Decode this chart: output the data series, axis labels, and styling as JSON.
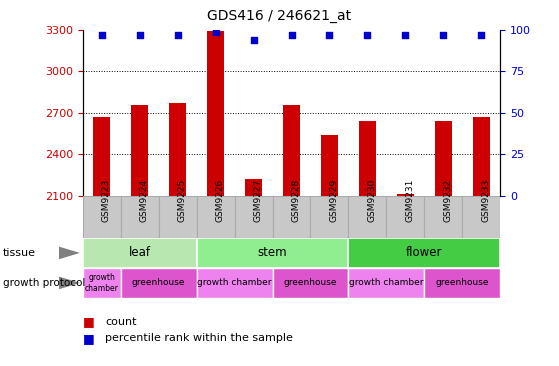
{
  "title": "GDS416 / 246621_at",
  "samples": [
    "GSM9223",
    "GSM9224",
    "GSM9225",
    "GSM9226",
    "GSM9227",
    "GSM9228",
    "GSM9229",
    "GSM9230",
    "GSM9231",
    "GSM9232",
    "GSM9233"
  ],
  "counts": [
    2670,
    2760,
    2770,
    3290,
    2220,
    2760,
    2540,
    2645,
    2115,
    2640,
    2670
  ],
  "percentiles": [
    97,
    97,
    97,
    99,
    94,
    97,
    97,
    97,
    97,
    97,
    97
  ],
  "ylim_left": [
    2100,
    3300
  ],
  "ylim_right": [
    0,
    100
  ],
  "yticks_left": [
    2100,
    2400,
    2700,
    3000,
    3300
  ],
  "yticks_right": [
    0,
    25,
    50,
    75,
    100
  ],
  "bar_color": "#CC0000",
  "dot_color": "#0000CC",
  "tissue_data": [
    {
      "label": "leaf",
      "cols": [
        0,
        1,
        2
      ],
      "color": "#b8e8b0"
    },
    {
      "label": "stem",
      "cols": [
        3,
        4,
        5,
        6
      ],
      "color": "#90EE90"
    },
    {
      "label": "flower",
      "cols": [
        7,
        8,
        9,
        10
      ],
      "color": "#44CC44"
    }
  ],
  "protocol_data": [
    {
      "label": "growth\nchamber",
      "cols": [
        0
      ],
      "color": "#EE82EE"
    },
    {
      "label": "greenhouse",
      "cols": [
        1,
        2
      ],
      "color": "#DD55CC"
    },
    {
      "label": "growth chamber",
      "cols": [
        3,
        4
      ],
      "color": "#EE82EE"
    },
    {
      "label": "greenhouse",
      "cols": [
        5,
        6
      ],
      "color": "#DD55CC"
    },
    {
      "label": "growth chamber",
      "cols": [
        7,
        8
      ],
      "color": "#EE82EE"
    },
    {
      "label": "greenhouse",
      "cols": [
        9,
        10
      ],
      "color": "#DD55CC"
    }
  ],
  "bg_color": "#FFFFFF",
  "tick_color_left": "#CC0000",
  "tick_color_right": "#0000CC",
  "gray_box_color": "#C8C8C8",
  "gray_box_border": "#AAAAAA"
}
